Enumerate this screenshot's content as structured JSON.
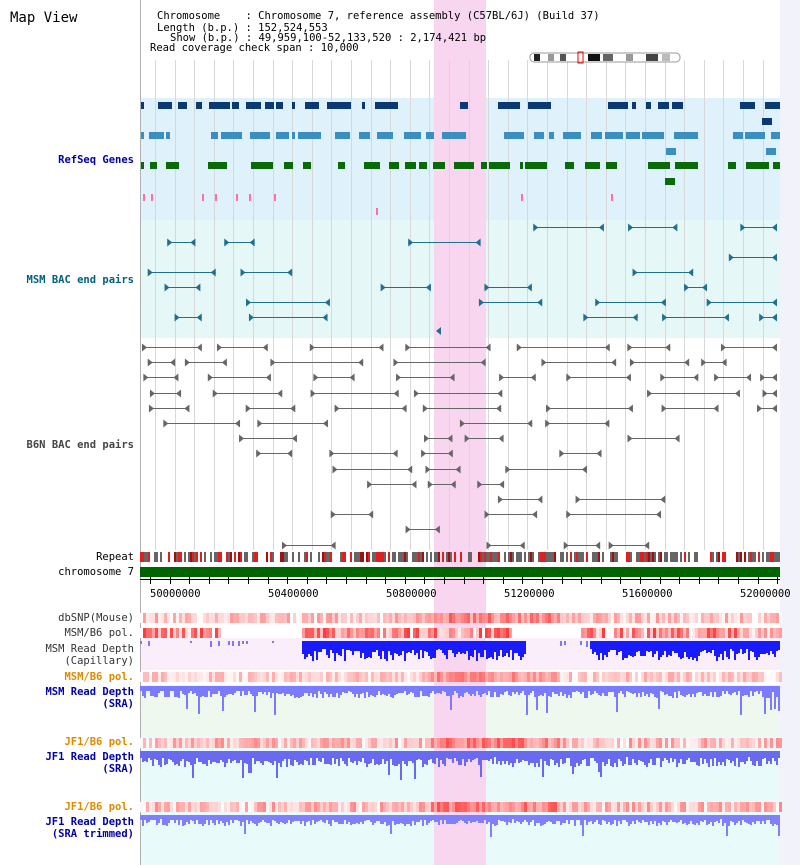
{
  "app": {
    "title": "Map View"
  },
  "info": {
    "chromosome_label": "Chromosome",
    "chromosome_value": "Chromosome 7, reference assembly (C57BL/6J) (Build 37)",
    "length_label": "Length (b.p.)",
    "length_value": "152,524,553",
    "show_label": "Show (b.p.)",
    "show_value": "49,959,100-52,133,520 : 2,174,421 bp",
    "span_label": "Read coverage check span",
    "span_value": "10,000"
  },
  "tracks": {
    "refseq": "RefSeq Genes",
    "msm_bac": "MSM BAC end pairs",
    "b6n_bac": "B6N BAC end pairs",
    "repeat": "Repeat",
    "chromosome": "chromosome 7",
    "dbsnp": "dbSNP(Mouse)",
    "msm_pol": "MSM/B6 pol.",
    "msm_depth_cap_1": "MSM Read Depth",
    "msm_depth_cap_2": "(Capillary)",
    "msm_pol2": "MSM/B6 pol.",
    "msm_sra_1": "MSM Read Depth",
    "msm_sra_2": "(SRA)",
    "jf1_pol": "JF1/B6 pol.",
    "jf1_sra_1": "JF1 Read Depth",
    "jf1_sra_2": "(SRA)",
    "jf1_pol2": "JF1/B6 pol.",
    "jf1_trim_1": "JF1 Read Depth",
    "jf1_trim_2": "(SRA trimmed)"
  },
  "axis": {
    "ticks": [
      "50000000",
      "50400000",
      "50800000",
      "51200000",
      "51600000",
      "52000000"
    ]
  },
  "colors": {
    "refseq_label": "#0000aa",
    "msm_label": "#006080",
    "b6n_label": "#444444",
    "pol_label": "#e08a00",
    "depth_label": "#0000aa",
    "gene_dark": "#0b3a72",
    "gene_mid": "#3a8fc0",
    "gene_green": "#0a6a0a",
    "pink_highlight": "#f8d6f0",
    "chromosome_bar": "#006400"
  }
}
